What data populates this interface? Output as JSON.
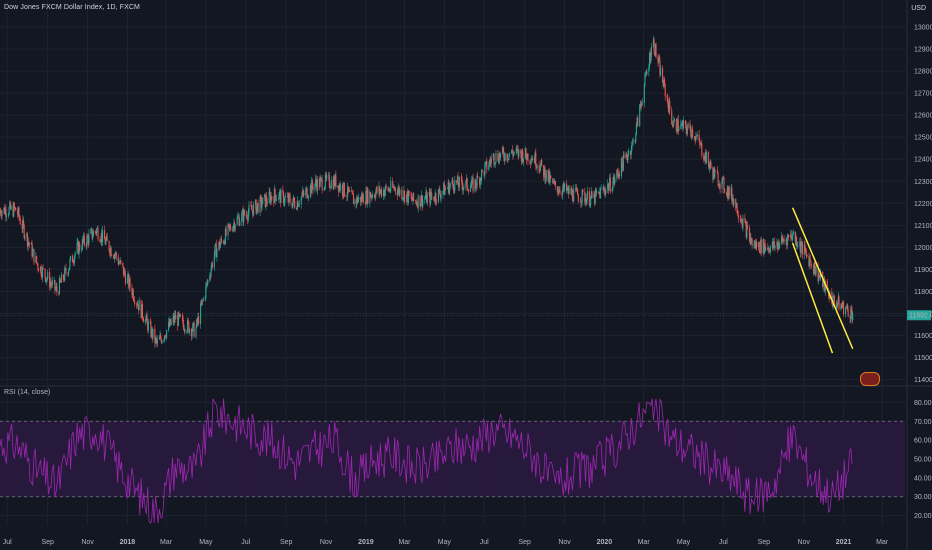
{
  "header": {
    "title": "Dow Jones FXCM Dollar Index, 1D, FXCM",
    "currency": "USD"
  },
  "rsi": {
    "label": "RSI (14, close)",
    "upper": 70,
    "lower": 30
  },
  "last_price": {
    "label": "11692.07",
    "value": 11692
  },
  "colors": {
    "background": "#131722",
    "up": "#26a69a",
    "down": "#ef5350",
    "channel": "#ffeb3b",
    "rsi_line": "#9c27b0",
    "rsi_band": "#2a1a3f",
    "grid": "#1e2230"
  },
  "chart_data": [
    {
      "type": "candlestick",
      "ylim": [
        11380,
        13050
      ],
      "yticks": [
        11400,
        11500,
        11600,
        11700,
        11800,
        11900,
        12000,
        12100,
        12200,
        12300,
        12400,
        12500,
        12600,
        12700,
        12800,
        12900,
        13000
      ],
      "xticks": [
        "Jul",
        "Sep",
        "Nov",
        "2018",
        "Mar",
        "May",
        "Jul",
        "Sep",
        "Nov",
        "2019",
        "Mar",
        "May",
        "Jul",
        "Sep",
        "Nov",
        "2020",
        "Mar",
        "May",
        "Jul",
        "Sep",
        "Nov",
        "2021",
        "Mar"
      ],
      "series": [
        {
          "x": [
            "2017-07",
            "2017-08",
            "2017-09",
            "2017-10",
            "2017-11",
            "2017-12",
            "2018-01",
            "2018-02",
            "2018-03",
            "2018-04",
            "2018-05",
            "2018-06",
            "2018-07",
            "2018-08",
            "2018-09",
            "2018-10",
            "2018-11",
            "2018-12",
            "2019-01",
            "2019-02",
            "2019-03",
            "2019-04",
            "2019-05",
            "2019-06",
            "2019-07",
            "2019-08",
            "2019-09",
            "2019-10",
            "2019-11",
            "2019-12",
            "2020-01",
            "2020-02",
            "2020-03",
            "2020-04",
            "2020-05",
            "2020-06",
            "2020-07",
            "2020-08",
            "2020-09",
            "2020-10",
            "2020-11",
            "2020-12",
            "2021-01"
          ],
          "values": [
            12170,
            11930,
            11800,
            11990,
            12080,
            11960,
            11760,
            11560,
            11680,
            11620,
            11980,
            12120,
            12180,
            12240,
            12200,
            12290,
            12300,
            12210,
            12250,
            12270,
            12210,
            12230,
            12290,
            12280,
            12410,
            12430,
            12410,
            12280,
            12240,
            12220,
            12300,
            12480,
            12940,
            12560,
            12530,
            12340,
            12230,
            12010,
            12000,
            12060,
            11920,
            11760,
            11700
          ]
        }
      ],
      "annotations": [
        {
          "type": "trendline",
          "from": [
            "2020-10",
            12180
          ],
          "to": [
            "2021-01",
            11540
          ]
        },
        {
          "type": "trendline",
          "from": [
            "2020-10",
            12020
          ],
          "to": [
            "2020-12",
            11520
          ]
        }
      ]
    },
    {
      "type": "line",
      "ylim": [
        15,
        85
      ],
      "yticks": [
        20,
        30,
        40,
        50,
        60,
        70,
        80
      ],
      "series": [
        {
          "name": "RSI (14, close)",
          "x": [
            "2017-07",
            "2017-08",
            "2017-09",
            "2017-10",
            "2017-11",
            "2017-12",
            "2018-01",
            "2018-02",
            "2018-03",
            "2018-04",
            "2018-05",
            "2018-06",
            "2018-07",
            "2018-08",
            "2018-09",
            "2018-10",
            "2018-11",
            "2018-12",
            "2019-01",
            "2019-02",
            "2019-03",
            "2019-04",
            "2019-05",
            "2019-06",
            "2019-07",
            "2019-08",
            "2019-09",
            "2019-10",
            "2019-11",
            "2019-12",
            "2020-01",
            "2020-02",
            "2020-03",
            "2020-04",
            "2020-05",
            "2020-06",
            "2020-07",
            "2020-08",
            "2020-09",
            "2020-10",
            "2020-11",
            "2020-12",
            "2021-01"
          ],
          "values": [
            58,
            44,
            35,
            62,
            66,
            48,
            32,
            22,
            46,
            44,
            76,
            70,
            64,
            58,
            48,
            55,
            60,
            38,
            50,
            52,
            45,
            48,
            56,
            58,
            66,
            62,
            52,
            36,
            42,
            46,
            54,
            68,
            78,
            60,
            54,
            46,
            40,
            28,
            36,
            62,
            40,
            30,
            48
          ]
        }
      ]
    }
  ]
}
